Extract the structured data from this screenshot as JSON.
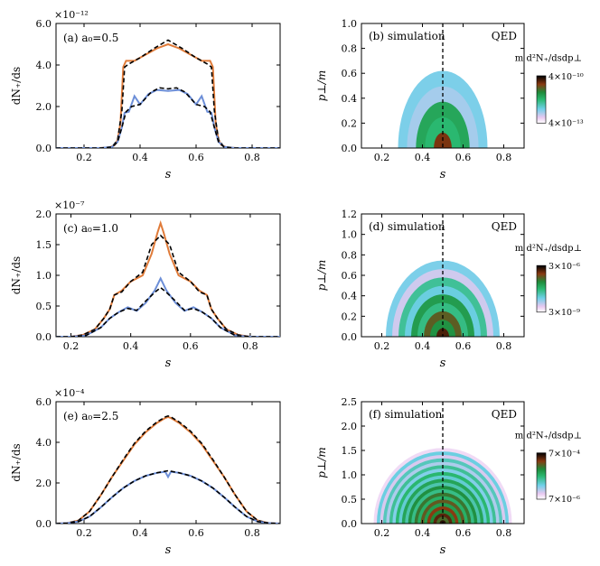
{
  "chart_data": [
    {
      "id": "a",
      "type": "line",
      "panel_label": "(a) a₀=0.5",
      "xlabel": "s",
      "ylabel": "dN₊/ds",
      "exponent": "×10⁻¹²",
      "xlim": [
        0.1,
        0.9
      ],
      "ylim": [
        0,
        6
      ],
      "xticks": [
        0.2,
        0.4,
        0.6,
        0.8
      ],
      "xtick_labels": [
        "0.2",
        "0.4",
        "0.6",
        "0.8"
      ],
      "yticks": [
        0,
        2,
        4,
        6
      ],
      "ytick_labels": [
        "0.0",
        "2.0",
        "4.0",
        "6.0"
      ],
      "series": [
        {
          "role": "orange",
          "color": "#e07b39",
          "dash": false,
          "x": [
            0.1,
            0.25,
            0.29,
            0.31,
            0.32,
            0.33,
            0.34,
            0.35,
            0.38,
            0.42,
            0.46,
            0.5,
            0.54,
            0.58,
            0.62,
            0.65,
            0.66,
            0.67,
            0.68,
            0.69,
            0.71,
            0.75,
            0.9
          ],
          "y": [
            0,
            0,
            0.02,
            0.15,
            0.4,
            1.2,
            3.9,
            4.2,
            4.2,
            4.5,
            4.8,
            5.0,
            4.8,
            4.5,
            4.2,
            4.2,
            3.9,
            1.2,
            0.4,
            0.15,
            0.02,
            0,
            0
          ]
        },
        {
          "role": "orange-fit",
          "color": "#000000",
          "dash": true,
          "x": [
            0.1,
            0.26,
            0.3,
            0.32,
            0.335,
            0.345,
            0.36,
            0.4,
            0.45,
            0.5,
            0.55,
            0.6,
            0.64,
            0.655,
            0.665,
            0.68,
            0.7,
            0.74,
            0.9
          ],
          "y": [
            0,
            0,
            0.05,
            0.4,
            1.8,
            3.9,
            4.05,
            4.35,
            4.8,
            5.2,
            4.8,
            4.35,
            4.05,
            3.9,
            1.8,
            0.4,
            0.05,
            0,
            0
          ]
        },
        {
          "role": "blue",
          "color": "#6d8fd8",
          "dash": false,
          "x": [
            0.1,
            0.26,
            0.3,
            0.32,
            0.335,
            0.345,
            0.36,
            0.38,
            0.4,
            0.43,
            0.46,
            0.5,
            0.54,
            0.57,
            0.6,
            0.62,
            0.64,
            0.655,
            0.665,
            0.68,
            0.7,
            0.74,
            0.9
          ],
          "y": [
            0,
            0,
            0.05,
            0.3,
            1.0,
            1.7,
            1.75,
            2.5,
            2.1,
            2.6,
            2.8,
            2.75,
            2.8,
            2.6,
            2.1,
            2.5,
            1.75,
            1.7,
            1.0,
            0.3,
            0.05,
            0,
            0
          ]
        },
        {
          "role": "blue-fit",
          "color": "#000000",
          "dash": true,
          "x": [
            0.1,
            0.26,
            0.3,
            0.32,
            0.335,
            0.35,
            0.37,
            0.4,
            0.44,
            0.47,
            0.5,
            0.53,
            0.56,
            0.6,
            0.63,
            0.65,
            0.665,
            0.68,
            0.7,
            0.74,
            0.9
          ],
          "y": [
            0,
            0,
            0.05,
            0.3,
            1.0,
            1.75,
            2.0,
            2.1,
            2.7,
            2.9,
            2.85,
            2.9,
            2.7,
            2.1,
            2.0,
            1.75,
            1.0,
            0.3,
            0.05,
            0,
            0
          ]
        }
      ]
    },
    {
      "id": "b",
      "type": "heatmap",
      "panel_label": "(b) simulation",
      "right_label": "QED",
      "xlabel": "s",
      "ylabel": "p⊥/m",
      "xlim": [
        0.1,
        0.9
      ],
      "ylim": [
        0,
        1.0
      ],
      "xticks": [
        0.2,
        0.4,
        0.6,
        0.8
      ],
      "xtick_labels": [
        "0.2",
        "0.4",
        "0.6",
        "0.8"
      ],
      "yticks": [
        0,
        0.2,
        0.4,
        0.6,
        0.8,
        1.0
      ],
      "ytick_labels": [
        "0.0",
        "0.2",
        "0.4",
        "0.6",
        "0.8",
        "1.0"
      ],
      "colorbar": {
        "title": "m d²N₊/dsdp⊥",
        "max_label": "4×10⁻¹⁰",
        "min_label": "4×10⁻¹³"
      },
      "center": 0.5,
      "max_radius": 0.22,
      "rings": 5
    },
    {
      "id": "c",
      "type": "line",
      "panel_label": "(c) a₀=1.0",
      "xlabel": "s",
      "ylabel": "dN₊/ds",
      "exponent": "×10⁻⁷",
      "xlim": [
        0.15,
        0.9
      ],
      "ylim": [
        0,
        2
      ],
      "xticks": [
        0.2,
        0.4,
        0.6,
        0.8
      ],
      "xtick_labels": [
        "0.2",
        "0.4",
        "0.6",
        "0.8"
      ],
      "yticks": [
        0,
        0.5,
        1.0,
        1.5,
        2.0
      ],
      "ytick_labels": [
        "0.0",
        "0.5",
        "1.0",
        "1.5",
        "2.0"
      ],
      "series": [
        {
          "role": "orange",
          "color": "#e07b39",
          "dash": false,
          "x": [
            0.15,
            0.2,
            0.24,
            0.28,
            0.31,
            0.33,
            0.345,
            0.37,
            0.4,
            0.44,
            0.47,
            0.49,
            0.5,
            0.51,
            0.53,
            0.56,
            0.6,
            0.63,
            0.655,
            0.67,
            0.69,
            0.72,
            0.76,
            0.8,
            0.85,
            0.9
          ],
          "y": [
            0,
            0,
            0.03,
            0.12,
            0.3,
            0.45,
            0.68,
            0.75,
            0.9,
            1.0,
            1.35,
            1.7,
            1.85,
            1.7,
            1.35,
            1.0,
            0.9,
            0.75,
            0.68,
            0.45,
            0.3,
            0.12,
            0.03,
            0,
            0,
            0
          ]
        },
        {
          "role": "orange-fit",
          "color": "#000000",
          "dash": true,
          "x": [
            0.15,
            0.2,
            0.24,
            0.28,
            0.31,
            0.33,
            0.345,
            0.37,
            0.4,
            0.44,
            0.47,
            0.5,
            0.53,
            0.56,
            0.6,
            0.63,
            0.655,
            0.67,
            0.69,
            0.72,
            0.76,
            0.8,
            0.85,
            0.9
          ],
          "y": [
            0,
            0,
            0.03,
            0.12,
            0.3,
            0.45,
            0.68,
            0.73,
            0.9,
            1.05,
            1.5,
            1.65,
            1.5,
            1.05,
            0.9,
            0.73,
            0.68,
            0.45,
            0.3,
            0.12,
            0.03,
            0,
            0,
            0
          ]
        },
        {
          "role": "blue",
          "color": "#6d8fd8",
          "dash": false,
          "x": [
            0.15,
            0.2,
            0.25,
            0.3,
            0.33,
            0.36,
            0.39,
            0.42,
            0.45,
            0.48,
            0.5,
            0.52,
            0.55,
            0.58,
            0.61,
            0.64,
            0.67,
            0.7,
            0.75,
            0.8,
            0.85,
            0.9
          ],
          "y": [
            0,
            0,
            0.02,
            0.15,
            0.3,
            0.4,
            0.48,
            0.42,
            0.55,
            0.75,
            0.95,
            0.75,
            0.55,
            0.42,
            0.48,
            0.4,
            0.3,
            0.15,
            0.02,
            0,
            0,
            0
          ]
        },
        {
          "role": "blue-fit",
          "color": "#000000",
          "dash": true,
          "x": [
            0.15,
            0.2,
            0.25,
            0.3,
            0.33,
            0.36,
            0.39,
            0.42,
            0.45,
            0.48,
            0.5,
            0.52,
            0.55,
            0.58,
            0.61,
            0.64,
            0.67,
            0.7,
            0.75,
            0.8,
            0.85,
            0.9
          ],
          "y": [
            0,
            0,
            0.02,
            0.15,
            0.3,
            0.4,
            0.46,
            0.43,
            0.58,
            0.72,
            0.8,
            0.72,
            0.58,
            0.43,
            0.46,
            0.4,
            0.3,
            0.15,
            0.02,
            0,
            0,
            0
          ]
        }
      ]
    },
    {
      "id": "d",
      "type": "heatmap",
      "panel_label": "(d) simulation",
      "right_label": "QED",
      "xlabel": "s",
      "ylabel": "p⊥/m",
      "xlim": [
        0.1,
        0.9
      ],
      "ylim": [
        0,
        1.2
      ],
      "xticks": [
        0.2,
        0.4,
        0.6,
        0.8
      ],
      "xtick_labels": [
        "0.2",
        "0.4",
        "0.6",
        "0.8"
      ],
      "yticks": [
        0,
        0.2,
        0.4,
        0.6,
        0.8,
        1.0,
        1.2
      ],
      "ytick_labels": [
        "0.0",
        "0.2",
        "0.4",
        "0.6",
        "0.8",
        "1.0",
        "1.2"
      ],
      "colorbar": {
        "title": "m d²N₊/dsdp⊥",
        "max_label": "3×10⁻⁶",
        "min_label": "3×10⁻⁹"
      },
      "center": 0.5,
      "max_radius": 0.28,
      "rings": 9
    },
    {
      "id": "e",
      "type": "line",
      "panel_label": "(e) a₀=2.5",
      "xlabel": "s",
      "ylabel": "dN₊/ds",
      "exponent": "×10⁻⁴",
      "xlim": [
        0.1,
        0.9
      ],
      "ylim": [
        0,
        6
      ],
      "xticks": [
        0.2,
        0.4,
        0.6,
        0.8
      ],
      "xtick_labels": [
        "0.2",
        "0.4",
        "0.6",
        "0.8"
      ],
      "yticks": [
        0,
        2,
        4,
        6
      ],
      "ytick_labels": [
        "0.0",
        "2.0",
        "4.0",
        "6.0"
      ],
      "series": [
        {
          "role": "orange",
          "color": "#e07b39",
          "dash": false,
          "x": [
            0.1,
            0.14,
            0.18,
            0.22,
            0.26,
            0.3,
            0.34,
            0.38,
            0.42,
            0.46,
            0.49,
            0.5,
            0.51,
            0.54,
            0.58,
            0.62,
            0.66,
            0.7,
            0.74,
            0.78,
            0.82,
            0.86,
            0.9
          ],
          "y": [
            0,
            0.02,
            0.15,
            0.6,
            1.4,
            2.3,
            3.1,
            3.9,
            4.5,
            4.95,
            5.2,
            5.25,
            5.2,
            4.95,
            4.5,
            3.9,
            3.1,
            2.3,
            1.4,
            0.6,
            0.15,
            0.02,
            0
          ]
        },
        {
          "role": "orange-fit",
          "color": "#000000",
          "dash": true,
          "x": [
            0.1,
            0.14,
            0.18,
            0.22,
            0.26,
            0.3,
            0.34,
            0.38,
            0.42,
            0.46,
            0.49,
            0.5,
            0.51,
            0.54,
            0.58,
            0.62,
            0.66,
            0.7,
            0.74,
            0.78,
            0.82,
            0.86,
            0.9
          ],
          "y": [
            0,
            0.02,
            0.15,
            0.6,
            1.4,
            2.3,
            3.15,
            3.95,
            4.55,
            5.0,
            5.25,
            5.3,
            5.25,
            5.0,
            4.55,
            3.95,
            3.15,
            2.3,
            1.4,
            0.6,
            0.15,
            0.02,
            0
          ]
        },
        {
          "role": "blue",
          "color": "#6d8fd8",
          "dash": false,
          "x": [
            0.1,
            0.14,
            0.18,
            0.22,
            0.26,
            0.3,
            0.34,
            0.38,
            0.42,
            0.46,
            0.49,
            0.5,
            0.51,
            0.54,
            0.58,
            0.62,
            0.66,
            0.7,
            0.74,
            0.78,
            0.82,
            0.86,
            0.9
          ],
          "y": [
            0,
            0.02,
            0.1,
            0.35,
            0.8,
            1.3,
            1.75,
            2.1,
            2.35,
            2.5,
            2.55,
            2.3,
            2.55,
            2.5,
            2.35,
            2.1,
            1.75,
            1.3,
            0.8,
            0.35,
            0.1,
            0.02,
            0
          ]
        },
        {
          "role": "blue-fit",
          "color": "#000000",
          "dash": true,
          "x": [
            0.1,
            0.14,
            0.18,
            0.22,
            0.26,
            0.3,
            0.34,
            0.38,
            0.42,
            0.46,
            0.49,
            0.5,
            0.51,
            0.54,
            0.58,
            0.62,
            0.66,
            0.7,
            0.74,
            0.78,
            0.82,
            0.86,
            0.9
          ],
          "y": [
            0,
            0.02,
            0.1,
            0.35,
            0.8,
            1.3,
            1.75,
            2.1,
            2.35,
            2.5,
            2.58,
            2.6,
            2.58,
            2.5,
            2.35,
            2.1,
            1.75,
            1.3,
            0.8,
            0.35,
            0.1,
            0.02,
            0
          ]
        }
      ]
    },
    {
      "id": "f",
      "type": "heatmap",
      "panel_label": "(f) simulation",
      "right_label": "QED",
      "xlabel": "s",
      "ylabel": "p⊥/m",
      "xlim": [
        0.1,
        0.9
      ],
      "ylim": [
        0,
        2.5
      ],
      "xticks": [
        0.2,
        0.4,
        0.6,
        0.8
      ],
      "xtick_labels": [
        "0.2",
        "0.4",
        "0.6",
        "0.8"
      ],
      "yticks": [
        0,
        0.5,
        1.0,
        1.5,
        2.0,
        2.5
      ],
      "ytick_labels": [
        "0.0",
        "0.5",
        "1.0",
        "1.5",
        "2.0",
        "2.5"
      ],
      "colorbar": {
        "title": "m d²N₊/dsdp⊥",
        "max_label": "7×10⁻⁴",
        "min_label": "7×10⁻⁶"
      },
      "center": 0.5,
      "max_radius": 0.34,
      "rings": 22
    }
  ]
}
